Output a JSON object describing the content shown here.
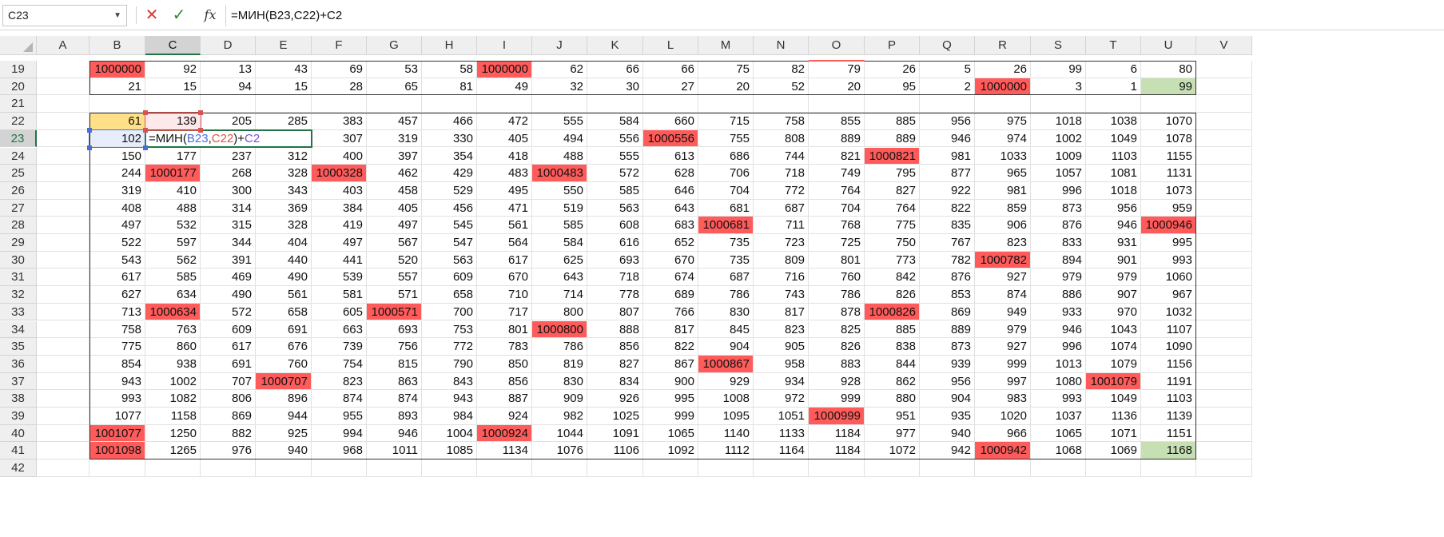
{
  "formula_bar": {
    "name_box": "C23",
    "formula": "=МИН(B23,C22)+C2",
    "fx_label": "fx"
  },
  "columns": [
    "A",
    "B",
    "C",
    "D",
    "E",
    "F",
    "G",
    "H",
    "I",
    "J",
    "K",
    "L",
    "M",
    "N",
    "O",
    "P",
    "Q",
    "R",
    "S",
    "T",
    "U",
    "V"
  ],
  "selected_column": "C",
  "rows": [
    {
      "num": "19",
      "cells": [
        "1000000",
        "92",
        "13",
        "43",
        "69",
        "53",
        "58",
        "1000000",
        "62",
        "66",
        "66",
        "75",
        "82",
        "79",
        "26",
        "5",
        "26",
        "99",
        "6",
        "80"
      ]
    },
    {
      "num": "20",
      "cells": [
        "21",
        "15",
        "94",
        "15",
        "28",
        "65",
        "81",
        "49",
        "32",
        "30",
        "27",
        "20",
        "52",
        "20",
        "95",
        "2",
        "1000000",
        "3",
        "1",
        "99"
      ]
    },
    {
      "num": "21",
      "cells": [
        "",
        "",
        "",
        "",
        "",
        "",
        "",
        "",
        "",
        "",
        "",
        "",
        "",
        "",
        "",
        "",
        "",
        "",
        "",
        ""
      ]
    },
    {
      "num": "22",
      "cells": [
        "61",
        "139",
        "205",
        "285",
        "383",
        "457",
        "466",
        "472",
        "555",
        "584",
        "660",
        "715",
        "758",
        "855",
        "885",
        "956",
        "975",
        "1018",
        "1038",
        "1070"
      ]
    },
    {
      "num": "23",
      "cells": [
        "102",
        "",
        "",
        "",
        "307",
        "319",
        "330",
        "405",
        "494",
        "556",
        "1000556",
        "755",
        "808",
        "889",
        "889",
        "946",
        "974",
        "1002",
        "1049",
        "1078"
      ]
    },
    {
      "num": "24",
      "cells": [
        "150",
        "177",
        "237",
        "312",
        "400",
        "397",
        "354",
        "418",
        "488",
        "555",
        "613",
        "686",
        "744",
        "821",
        "1000821",
        "981",
        "1033",
        "1009",
        "1103",
        "1155"
      ]
    },
    {
      "num": "25",
      "cells": [
        "244",
        "1000177",
        "268",
        "328",
        "1000328",
        "462",
        "429",
        "483",
        "1000483",
        "572",
        "628",
        "706",
        "718",
        "749",
        "795",
        "877",
        "965",
        "1057",
        "1081",
        "1131"
      ]
    },
    {
      "num": "26",
      "cells": [
        "319",
        "410",
        "300",
        "343",
        "403",
        "458",
        "529",
        "495",
        "550",
        "585",
        "646",
        "704",
        "772",
        "764",
        "827",
        "922",
        "981",
        "996",
        "1018",
        "1073"
      ]
    },
    {
      "num": "27",
      "cells": [
        "408",
        "488",
        "314",
        "369",
        "384",
        "405",
        "456",
        "471",
        "519",
        "563",
        "643",
        "681",
        "687",
        "704",
        "764",
        "822",
        "859",
        "873",
        "956",
        "959"
      ]
    },
    {
      "num": "28",
      "cells": [
        "497",
        "532",
        "315",
        "328",
        "419",
        "497",
        "545",
        "561",
        "585",
        "608",
        "683",
        "1000681",
        "711",
        "768",
        "775",
        "835",
        "906",
        "876",
        "946",
        "1000946"
      ]
    },
    {
      "num": "29",
      "cells": [
        "522",
        "597",
        "344",
        "404",
        "497",
        "567",
        "547",
        "564",
        "584",
        "616",
        "652",
        "735",
        "723",
        "725",
        "750",
        "767",
        "823",
        "833",
        "931",
        "995"
      ]
    },
    {
      "num": "30",
      "cells": [
        "543",
        "562",
        "391",
        "440",
        "441",
        "520",
        "563",
        "617",
        "625",
        "693",
        "670",
        "735",
        "809",
        "801",
        "773",
        "782",
        "1000782",
        "894",
        "901",
        "993"
      ]
    },
    {
      "num": "31",
      "cells": [
        "617",
        "585",
        "469",
        "490",
        "539",
        "557",
        "609",
        "670",
        "643",
        "718",
        "674",
        "687",
        "716",
        "760",
        "842",
        "876",
        "927",
        "979",
        "979",
        "1060"
      ]
    },
    {
      "num": "32",
      "cells": [
        "627",
        "634",
        "490",
        "561",
        "581",
        "571",
        "658",
        "710",
        "714",
        "778",
        "689",
        "786",
        "743",
        "786",
        "826",
        "853",
        "874",
        "886",
        "907",
        "967"
      ]
    },
    {
      "num": "33",
      "cells": [
        "713",
        "1000634",
        "572",
        "658",
        "605",
        "1000571",
        "700",
        "717",
        "800",
        "807",
        "766",
        "830",
        "817",
        "878",
        "1000826",
        "869",
        "949",
        "933",
        "970",
        "1032"
      ]
    },
    {
      "num": "34",
      "cells": [
        "758",
        "763",
        "609",
        "691",
        "663",
        "693",
        "753",
        "801",
        "1000800",
        "888",
        "817",
        "845",
        "823",
        "825",
        "885",
        "889",
        "979",
        "946",
        "1043",
        "1107"
      ]
    },
    {
      "num": "35",
      "cells": [
        "775",
        "860",
        "617",
        "676",
        "739",
        "756",
        "772",
        "783",
        "786",
        "856",
        "822",
        "904",
        "905",
        "826",
        "838",
        "873",
        "927",
        "996",
        "1074",
        "1090"
      ]
    },
    {
      "num": "36",
      "cells": [
        "854",
        "938",
        "691",
        "760",
        "754",
        "815",
        "790",
        "850",
        "819",
        "827",
        "867",
        "1000867",
        "958",
        "883",
        "844",
        "939",
        "999",
        "1013",
        "1079",
        "1156"
      ]
    },
    {
      "num": "37",
      "cells": [
        "943",
        "1002",
        "707",
        "1000707",
        "823",
        "863",
        "843",
        "856",
        "830",
        "834",
        "900",
        "929",
        "934",
        "928",
        "862",
        "956",
        "997",
        "1080",
        "1001079",
        "1191"
      ]
    },
    {
      "num": "38",
      "cells": [
        "993",
        "1082",
        "806",
        "896",
        "874",
        "874",
        "943",
        "887",
        "909",
        "926",
        "995",
        "1008",
        "972",
        "999",
        "880",
        "904",
        "983",
        "993",
        "1049",
        "1103"
      ]
    },
    {
      "num": "39",
      "cells": [
        "1077",
        "1158",
        "869",
        "944",
        "955",
        "893",
        "984",
        "924",
        "982",
        "1025",
        "999",
        "1095",
        "1051",
        "1000999",
        "951",
        "935",
        "1020",
        "1037",
        "1136",
        "1139"
      ]
    },
    {
      "num": "40",
      "cells": [
        "1001077",
        "1250",
        "882",
        "925",
        "994",
        "946",
        "1004",
        "1000924",
        "1044",
        "1091",
        "1065",
        "1140",
        "1133",
        "1184",
        "977",
        "940",
        "966",
        "1065",
        "1071",
        "1151"
      ]
    },
    {
      "num": "41",
      "cells": [
        "1001098",
        "1265",
        "976",
        "940",
        "968",
        "1011",
        "1085",
        "1134",
        "1076",
        "1106",
        "1092",
        "1112",
        "1164",
        "1184",
        "1072",
        "942",
        "1000942",
        "1068",
        "1069",
        "1168"
      ]
    },
    {
      "num": "42",
      "cells": [
        "",
        "",
        "",
        "",
        "",
        "",
        "",
        "",
        "",
        "",
        "",
        "",
        "",
        "",
        "",
        "",
        "",
        "",
        "",
        ""
      ]
    }
  ],
  "edit": {
    "prefix": "=МИН(",
    "ref1": "B23",
    "comma": ",",
    "ref2": "C22",
    "close": ")+",
    "ref3": "C2"
  },
  "colors": {
    "red": "#ff5b5b",
    "green": "#c6e0b4",
    "yellow": "#ffe089",
    "accent": "#217346",
    "ref_blue": "#4a6fd4",
    "ref_red": "#d9534f"
  }
}
